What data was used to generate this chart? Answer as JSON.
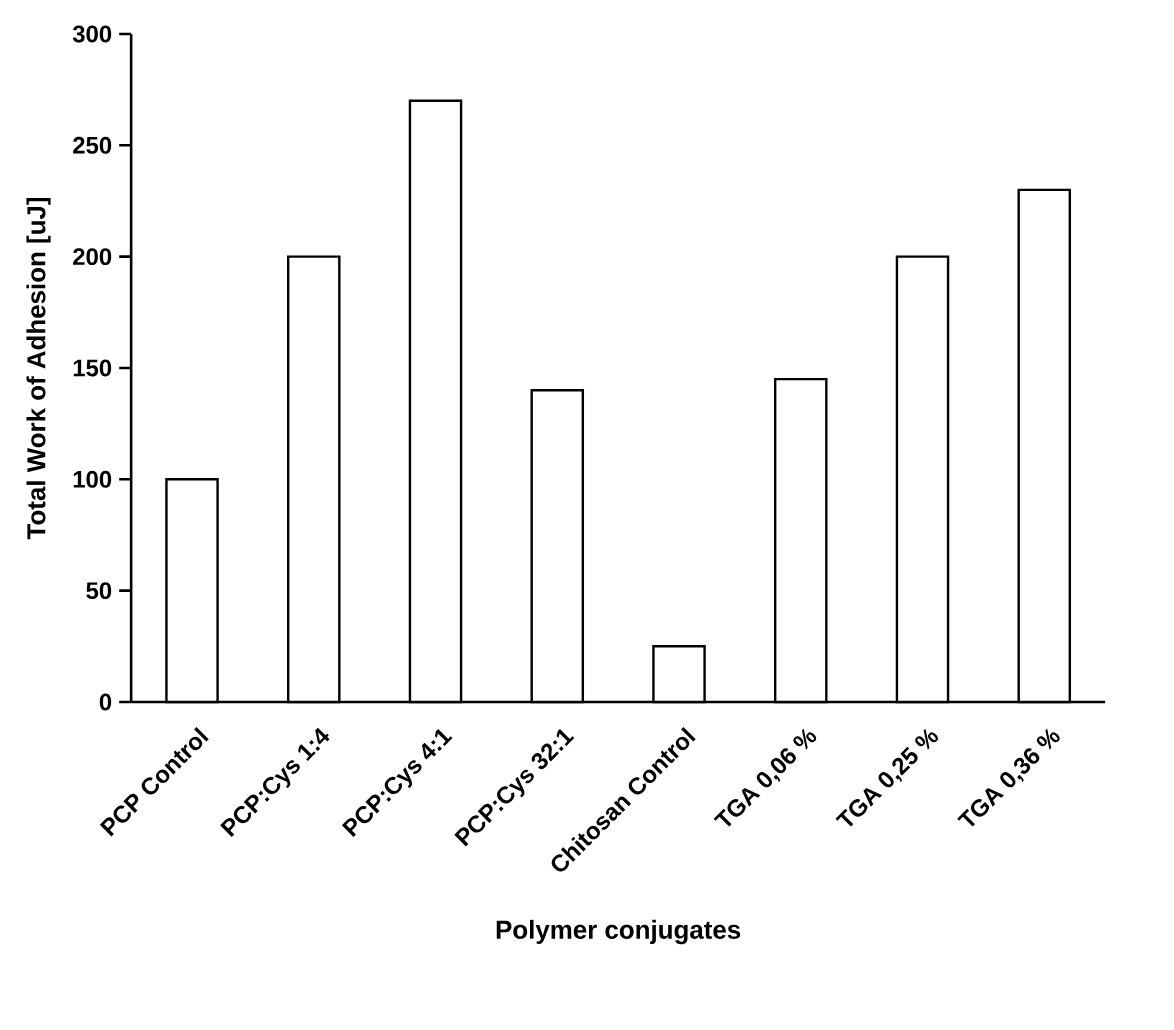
{
  "chart_data": {
    "type": "bar",
    "xlabel": "Polymer conjugates",
    "ylabel": "Total Work of Adhesion [uJ]",
    "categories": [
      "PCP Control",
      "PCP:Cys 1:4",
      "PCP:Cys 4:1",
      "PCP:Cys 32:1",
      "Chitosan Control",
      "TGA 0,06 %",
      "TGA 0,25 %",
      "TGA 0,36 %"
    ],
    "values": [
      100,
      200,
      270,
      140,
      25,
      145,
      200,
      230
    ],
    "color": "#ffffff",
    "ylim": [
      0,
      300
    ],
    "yticks": [
      0,
      50,
      100,
      150,
      200,
      250,
      300
    ]
  }
}
